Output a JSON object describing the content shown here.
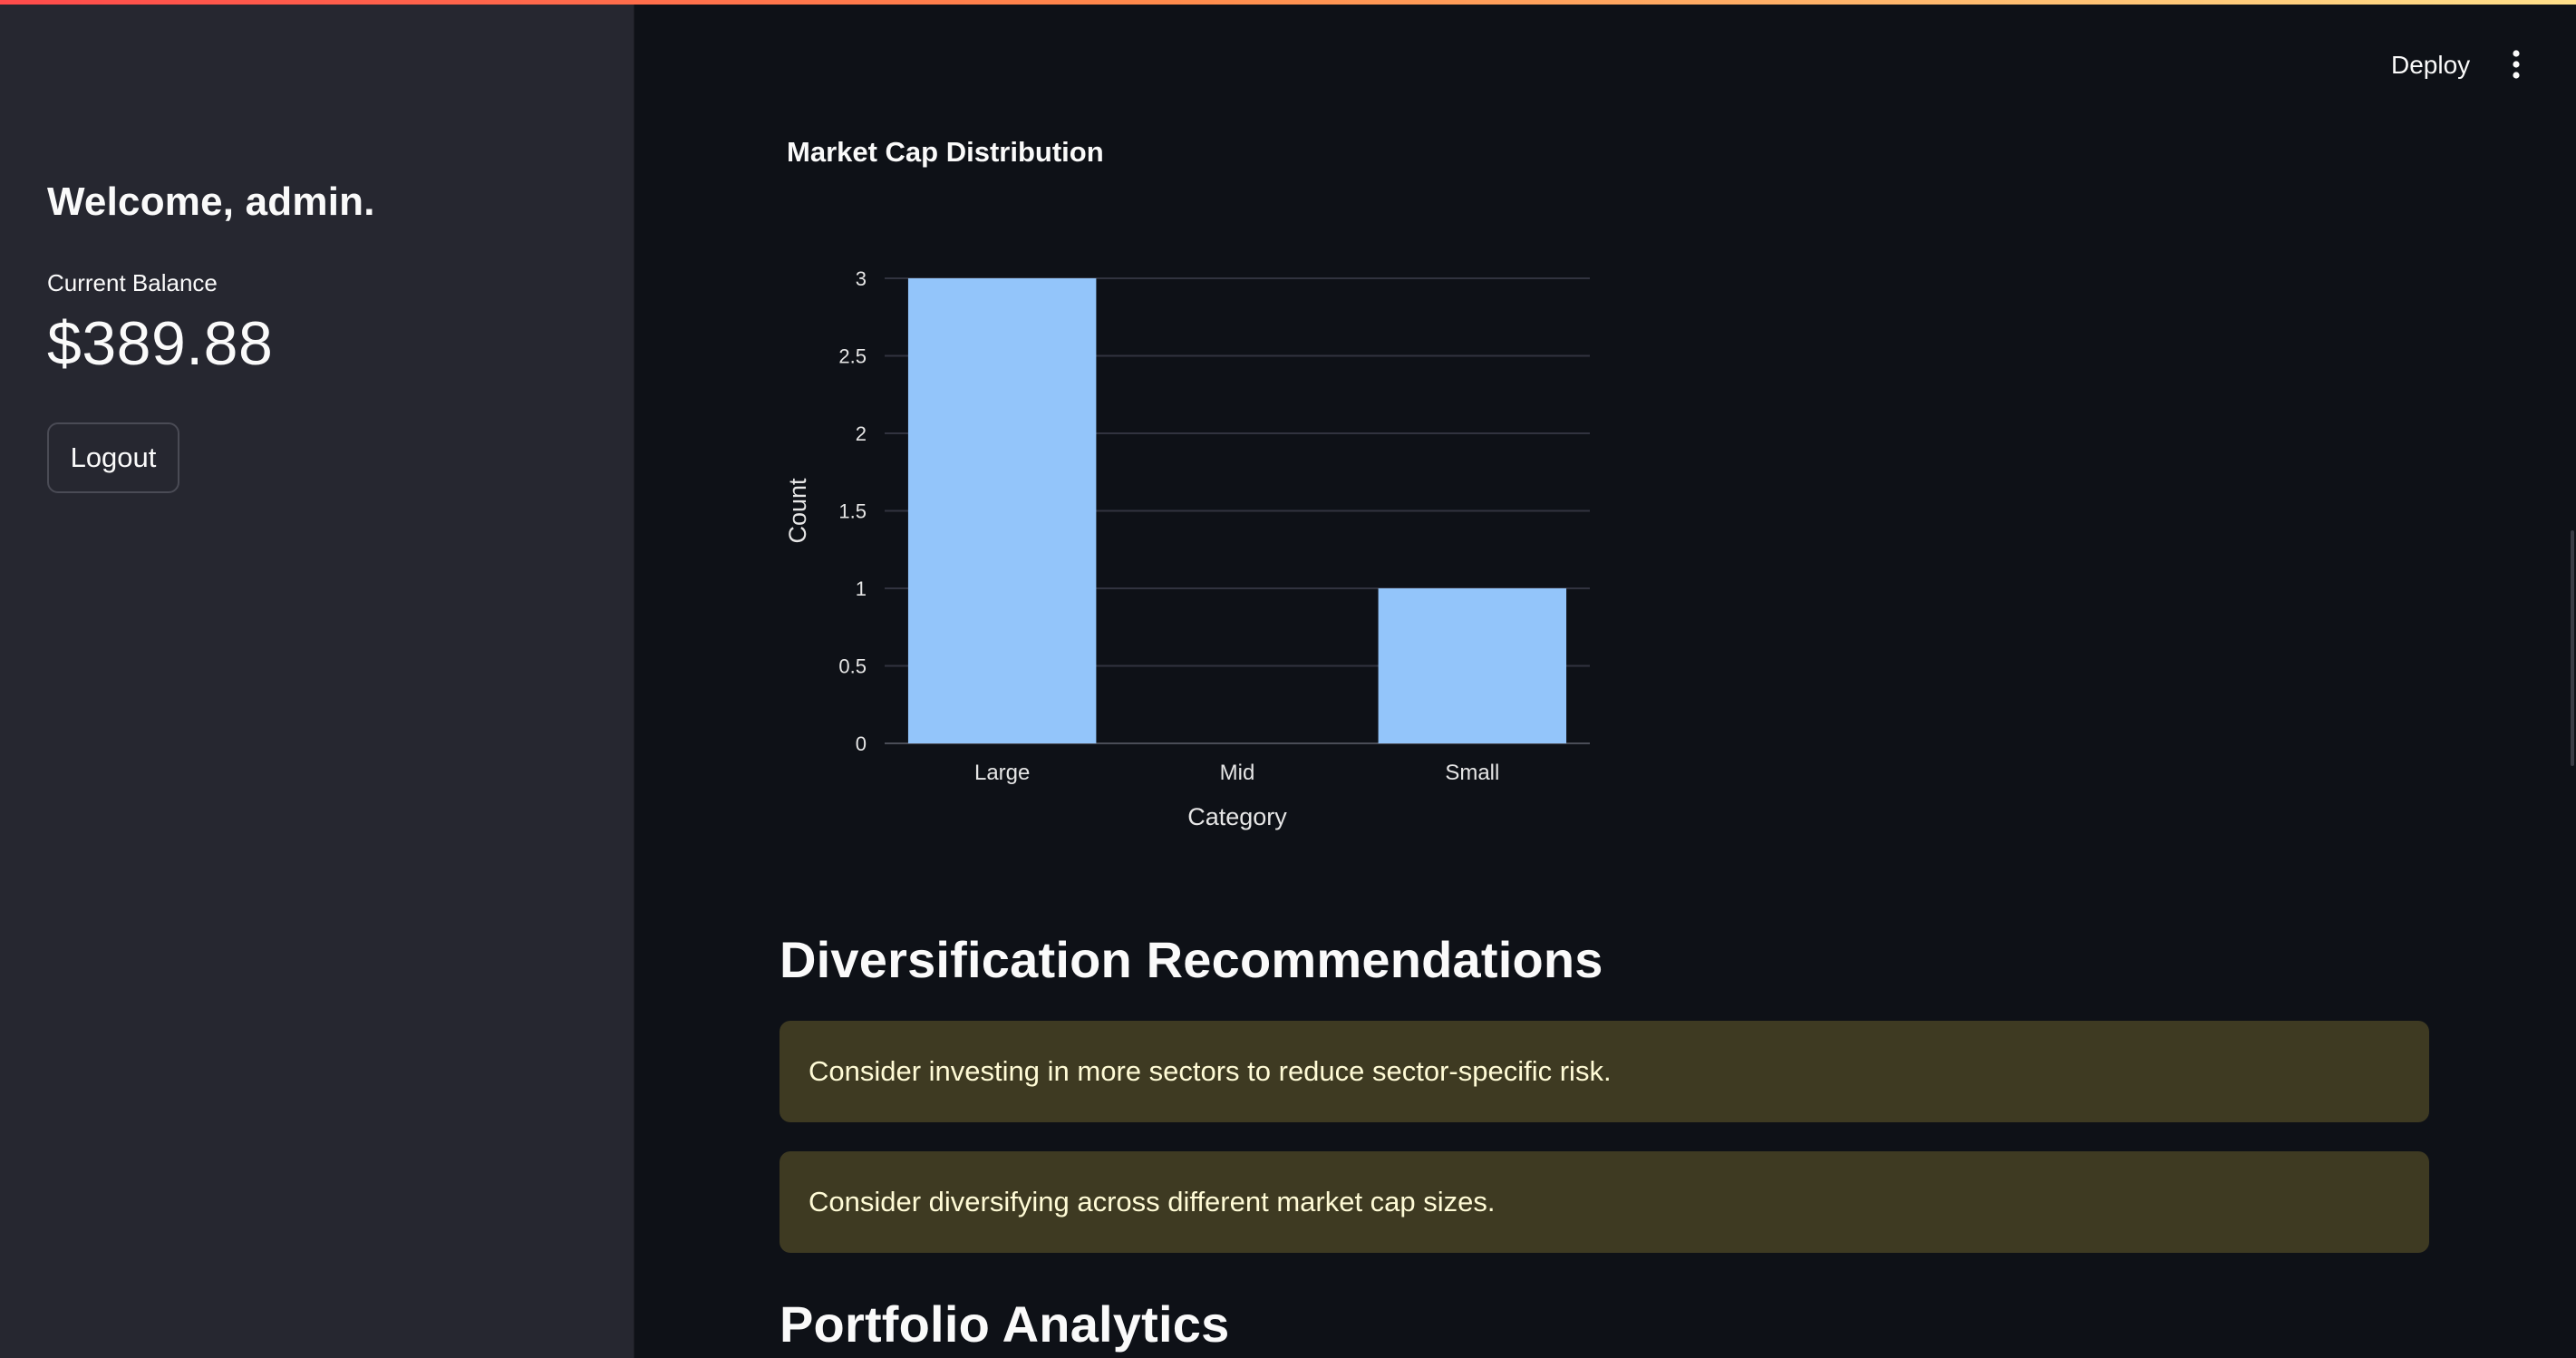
{
  "header": {
    "deploy_label": "Deploy",
    "menu_icon": "vertical-ellipsis-icon"
  },
  "sidebar": {
    "welcome": "Welcome, admin.",
    "balance_label": "Current Balance",
    "balance_value": "$389.88",
    "logout_label": "Logout"
  },
  "main": {
    "diversification_heading": "Diversification Recommendations",
    "recommendations": [
      "Consider investing in more sectors to reduce sector-specific risk.",
      "Consider diversifying across different market cap sizes."
    ],
    "analytics_heading": "Portfolio Analytics"
  },
  "chart_data": {
    "type": "bar",
    "title": "Market Cap Distribution",
    "categories": [
      "Large",
      "Mid",
      "Small"
    ],
    "values": [
      3,
      0,
      1
    ],
    "xlabel": "Category",
    "ylabel": "Count",
    "ylim": [
      0,
      3
    ],
    "yticks": [
      "0",
      "0.5",
      "1",
      "1.5",
      "2",
      "2.5",
      "3"
    ],
    "grid": true,
    "bar_color": "#93c5fa"
  },
  "colors": {
    "background": "#0e1117",
    "sidebar": "#262730",
    "warning_box": "#3e3a22",
    "warning_text": "#fffbd6"
  }
}
